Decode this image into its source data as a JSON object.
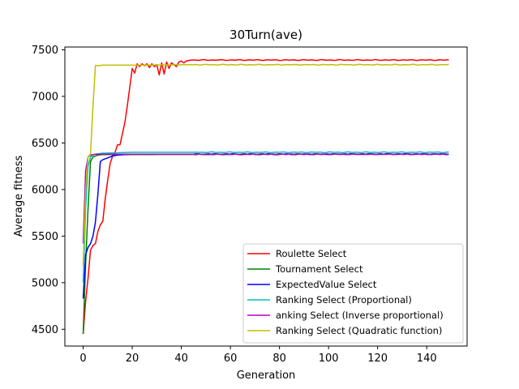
{
  "chart_data": {
    "type": "line",
    "title": "30Turn(ave)",
    "xlabel": "Generation",
    "ylabel": "Average fitness",
    "xlim": [
      -7.45,
      156.45
    ],
    "ylim": [
      4320,
      7530
    ],
    "xticks": [
      0,
      20,
      40,
      60,
      80,
      100,
      120,
      140
    ],
    "yticks": [
      4500,
      5000,
      5500,
      6000,
      6500,
      7000,
      7500
    ],
    "grid": false,
    "legend_position": "lower-right",
    "x_domain": [
      0,
      149
    ],
    "series": [
      {
        "name": "Roulette Select",
        "color": "#ff0000",
        "points": [
          [
            0,
            4450
          ],
          [
            1,
            4800
          ],
          [
            2,
            5050
          ],
          [
            3,
            5350
          ],
          [
            4,
            5400
          ],
          [
            5,
            5420
          ],
          [
            6,
            5550
          ],
          [
            7,
            5620
          ],
          [
            8,
            5660
          ],
          [
            9,
            5900
          ],
          [
            10,
            6100
          ],
          [
            11,
            6280
          ],
          [
            12,
            6360
          ],
          [
            13,
            6400
          ],
          [
            14,
            6480
          ],
          [
            15,
            6480
          ],
          [
            16,
            6600
          ],
          [
            17,
            6720
          ],
          [
            18,
            6900
          ],
          [
            19,
            7100
          ],
          [
            20,
            7300
          ],
          [
            21,
            7250
          ],
          [
            22,
            7350
          ],
          [
            23,
            7320
          ],
          [
            24,
            7350
          ],
          [
            25,
            7330
          ],
          [
            26,
            7350
          ],
          [
            27,
            7310
          ],
          [
            28,
            7350
          ],
          [
            29,
            7320
          ],
          [
            30,
            7340
          ],
          [
            31,
            7230
          ],
          [
            32,
            7360
          ],
          [
            33,
            7240
          ],
          [
            34,
            7370
          ],
          [
            35,
            7300
          ],
          [
            36,
            7360
          ],
          [
            37,
            7340
          ],
          [
            38,
            7320
          ],
          [
            39,
            7370
          ],
          [
            40,
            7380
          ],
          [
            41,
            7360
          ],
          [
            42,
            7380
          ],
          [
            44,
            7390
          ],
          [
            149,
            7390
          ]
        ]
      },
      {
        "name": "Tournament Select",
        "color": "#008000",
        "points": [
          [
            0,
            4450
          ],
          [
            1,
            5200
          ],
          [
            2,
            5800
          ],
          [
            3,
            6300
          ],
          [
            4,
            6350
          ],
          [
            5,
            6360
          ],
          [
            6,
            6370
          ],
          [
            8,
            6375
          ],
          [
            149,
            6380
          ]
        ]
      },
      {
        "name": "ExpectedValue Select",
        "color": "#0000ff",
        "points": [
          [
            0,
            4830
          ],
          [
            1,
            5300
          ],
          [
            2,
            5380
          ],
          [
            3,
            5420
          ],
          [
            4,
            5500
          ],
          [
            5,
            5650
          ],
          [
            6,
            5950
          ],
          [
            7,
            6300
          ],
          [
            8,
            6320
          ],
          [
            9,
            6330
          ],
          [
            10,
            6340
          ],
          [
            11,
            6350
          ],
          [
            12,
            6360
          ],
          [
            14,
            6370
          ],
          [
            20,
            6380
          ],
          [
            149,
            6380
          ]
        ]
      },
      {
        "name": "Ranking Select (Proportional)",
        "color": "#00bfbf",
        "points": [
          [
            0,
            5000
          ],
          [
            1,
            5800
          ],
          [
            2,
            6250
          ],
          [
            3,
            6350
          ],
          [
            4,
            6370
          ],
          [
            5,
            6380
          ],
          [
            8,
            6390
          ],
          [
            20,
            6400
          ],
          [
            149,
            6400
          ]
        ]
      },
      {
        "name": "anking Select (Inverse proportional)",
        "color": "#bf00bf",
        "points": [
          [
            0,
            5420
          ],
          [
            1,
            6200
          ],
          [
            2,
            6350
          ],
          [
            3,
            6370
          ],
          [
            5,
            6380
          ],
          [
            149,
            6380
          ]
        ]
      },
      {
        "name": "Ranking Select (Quadratic function)",
        "color": "#bfbf00",
        "points": [
          [
            0,
            5180
          ],
          [
            1,
            6000
          ],
          [
            2,
            6350
          ],
          [
            3,
            6380
          ],
          [
            4,
            6900
          ],
          [
            5,
            7330
          ],
          [
            6,
            7330
          ],
          [
            8,
            7335
          ],
          [
            15,
            7335
          ],
          [
            20,
            7335
          ],
          [
            40,
            7340
          ],
          [
            149,
            7340
          ]
        ]
      }
    ]
  }
}
